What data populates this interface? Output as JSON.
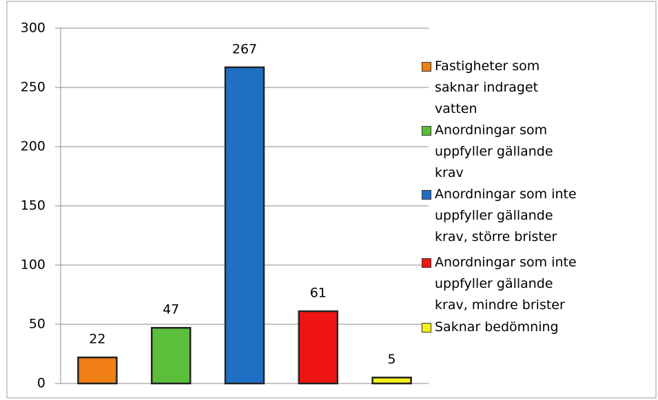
{
  "chart_data": {
    "type": "bar",
    "series": [
      {
        "name": "Fastigheter som saknar indraget vatten",
        "color": "#f07f16",
        "values": [
          22
        ]
      },
      {
        "name": "Anordningar som uppfyller gällande krav",
        "color": "#5cbf3c",
        "values": [
          47
        ]
      },
      {
        "name": "Anordningar som inte uppfyller gällande krav, större brister",
        "color": "#1f6fc5",
        "values": [
          267
        ]
      },
      {
        "name": "Anordningar som inte uppfyller gällande krav, mindre brister",
        "color": "#f01515",
        "values": [
          61
        ]
      },
      {
        "name": "Saknar bedömning",
        "color": "#f5f01a",
        "values": [
          5
        ]
      }
    ],
    "ylim": [
      0,
      300
    ],
    "yticks": [
      0,
      50,
      100,
      150,
      200,
      250,
      300
    ],
    "grid": true,
    "legend": "right"
  }
}
